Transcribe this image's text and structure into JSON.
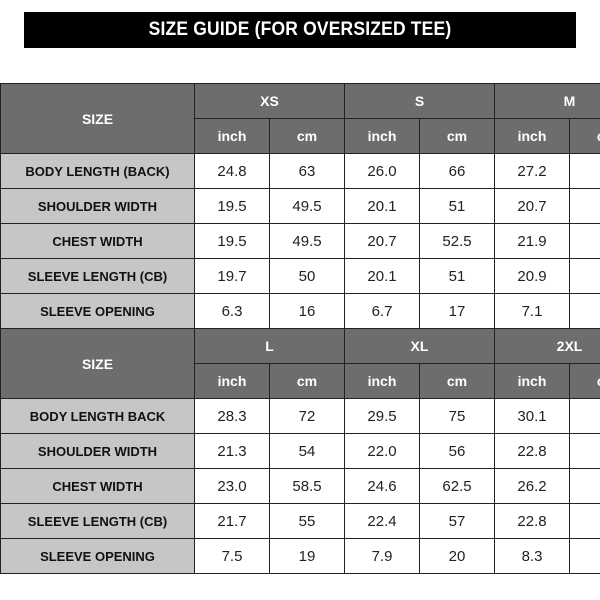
{
  "title": "SIZE GUIDE (FOR OVERSIZED TEE)",
  "colors": {
    "header_bg": "#6d6d6d",
    "label_bg": "#c6c6c6",
    "title_bg": "#000000"
  },
  "blocks": [
    {
      "size_label": "SIZE",
      "sizes": [
        "XS",
        "S",
        "M"
      ],
      "units": [
        "inch",
        "cm",
        "inch",
        "cm",
        "inch",
        "cm"
      ],
      "rows": [
        {
          "label": "BODY LENGTH (BACK)",
          "values": [
            "24.8",
            "63",
            "26.0",
            "66",
            "27.2",
            ""
          ]
        },
        {
          "label": "SHOULDER WIDTH",
          "values": [
            "19.5",
            "49.5",
            "20.1",
            "51",
            "20.7",
            ""
          ]
        },
        {
          "label": "CHEST WIDTH",
          "values": [
            "19.5",
            "49.5",
            "20.7",
            "52.5",
            "21.9",
            ""
          ]
        },
        {
          "label": "SLEEVE LENGTH (CB)",
          "values": [
            "19.7",
            "50",
            "20.1",
            "51",
            "20.9",
            ""
          ]
        },
        {
          "label": "SLEEVE OPENING",
          "values": [
            "6.3",
            "16",
            "6.7",
            "17",
            "7.1",
            ""
          ]
        }
      ]
    },
    {
      "size_label": "SIZE",
      "sizes": [
        "L",
        "XL",
        "2XL"
      ],
      "units": [
        "inch",
        "cm",
        "inch",
        "cm",
        "inch",
        "cm"
      ],
      "rows": [
        {
          "label": "BODY LENGTH BACK",
          "values": [
            "28.3",
            "72",
            "29.5",
            "75",
            "30.1",
            ""
          ]
        },
        {
          "label": "SHOULDER WIDTH",
          "values": [
            "21.3",
            "54",
            "22.0",
            "56",
            "22.8",
            ""
          ]
        },
        {
          "label": "CHEST WIDTH",
          "values": [
            "23.0",
            "58.5",
            "24.6",
            "62.5",
            "26.2",
            ""
          ]
        },
        {
          "label": "SLEEVE LENGTH (CB)",
          "values": [
            "21.7",
            "55",
            "22.4",
            "57",
            "22.8",
            ""
          ]
        },
        {
          "label": "SLEEVE OPENING",
          "values": [
            "7.5",
            "19",
            "7.9",
            "20",
            "8.3",
            ""
          ]
        }
      ]
    }
  ]
}
